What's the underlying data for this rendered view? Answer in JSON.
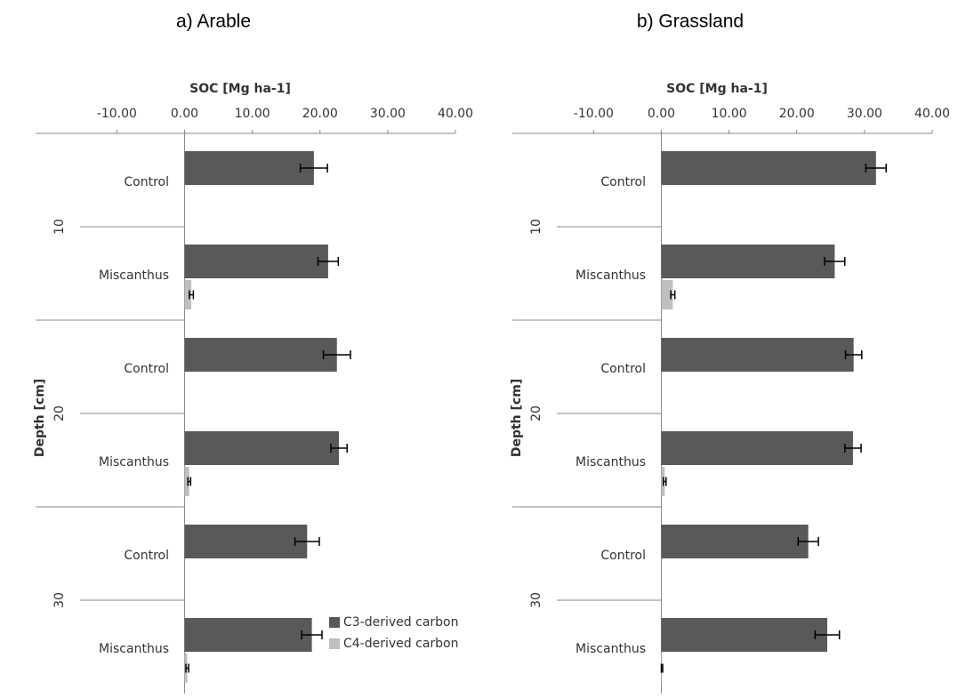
{
  "chart_data": [
    {
      "type": "bar",
      "title": "a) Arable",
      "x_label": "SOC [Mg ha-1]",
      "y_label": "Depth [cm]",
      "xlim": [
        -22,
        40
      ],
      "xticks": [
        {
          "value": -10,
          "label": "-10.00"
        },
        {
          "value": 0,
          "label": "0.00"
        },
        {
          "value": 10,
          "label": "10.00"
        },
        {
          "value": 20,
          "label": "20.00"
        },
        {
          "value": 30,
          "label": "30.00"
        },
        {
          "value": 40,
          "label": "40.00"
        }
      ],
      "groups": [
        "10",
        "20",
        "30"
      ],
      "categories": [
        "Control",
        "Miscanthus",
        "Control",
        "Miscanthus",
        "Control",
        "Miscanthus"
      ],
      "legend": "lower right",
      "series": [
        {
          "name": "C3-derived carbon",
          "color": "#595959",
          "values": [
            19.1,
            21.2,
            22.5,
            22.8,
            18.1,
            18.8
          ],
          "errors": [
            2.0,
            1.5,
            2.0,
            1.2,
            1.8,
            1.5
          ]
        },
        {
          "name": "C4-derived carbon",
          "color": "#bfbfbf",
          "values": [
            null,
            1.0,
            null,
            0.7,
            null,
            0.4
          ],
          "errors": [
            null,
            0.3,
            null,
            0.2,
            null,
            0.2
          ]
        }
      ]
    },
    {
      "type": "bar",
      "title": "b) Grassland",
      "x_label": "SOC [Mg ha-1]",
      "y_label": "Depth [cm]",
      "xlim": [
        -22,
        40
      ],
      "xticks": [
        {
          "value": -10,
          "label": "-10.00"
        },
        {
          "value": 0,
          "label": "0.00"
        },
        {
          "value": 10,
          "label": "10.00"
        },
        {
          "value": 20,
          "label": "20.00"
        },
        {
          "value": 30,
          "label": "30.00"
        },
        {
          "value": 40,
          "label": "40.00"
        }
      ],
      "groups": [
        "10",
        "20",
        "30"
      ],
      "categories": [
        "Control",
        "Miscanthus",
        "Control",
        "Miscanthus",
        "Control",
        "Miscanthus"
      ],
      "series": [
        {
          "color": "#595959",
          "values": [
            31.7,
            25.6,
            28.4,
            28.3,
            21.7,
            24.5
          ],
          "errors": [
            1.5,
            1.5,
            1.2,
            1.2,
            1.5,
            1.8
          ]
        },
        {
          "color": "#bfbfbf",
          "values": [
            null,
            1.7,
            null,
            0.5,
            null,
            0.1
          ],
          "errors": [
            null,
            0.3,
            null,
            0.2,
            null,
            0.1
          ]
        }
      ]
    }
  ]
}
